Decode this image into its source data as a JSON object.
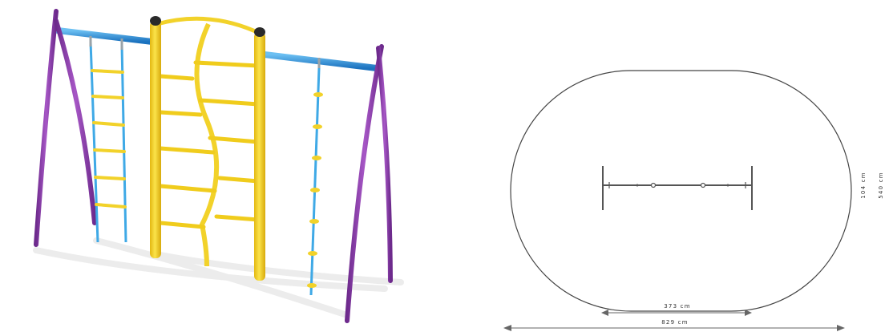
{
  "render": {
    "colors": {
      "frame": "#8e3fae",
      "beam": "#2a8bd8",
      "panel": "#f2d22a",
      "rope": "#3fa9e6",
      "cap": "#2a2a2a",
      "shadow": "#e9e9e9"
    }
  },
  "plan": {
    "dimensions": {
      "inner_width": "373 cm",
      "total_width": "829 cm",
      "inner_depth": "104 cm",
      "total_depth": "540 cm"
    }
  }
}
